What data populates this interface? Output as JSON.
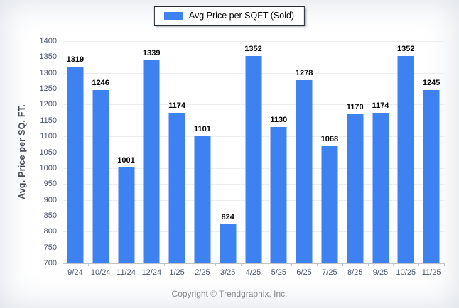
{
  "legend": {
    "label": "Avg Price per SQFT (Sold)"
  },
  "footer": {
    "copyright": "Copyright © Trendgraphix, Inc."
  },
  "colors": {
    "bar": "#3E82F1",
    "grid": "#ededed",
    "axis_line": "#bfc3c7",
    "tick_text": "#4a5468",
    "y_title": "#484d55",
    "value_label": "#000000",
    "legend_border": "#262b33",
    "copyright_text": "#87888a"
  },
  "chart_data": {
    "type": "bar",
    "title": "",
    "categories": [
      "9/24",
      "10/24",
      "11/24",
      "12/24",
      "1/25",
      "2/25",
      "3/25",
      "4/25",
      "5/25",
      "6/25",
      "7/25",
      "8/25",
      "9/25",
      "10/25",
      "11/25"
    ],
    "values": [
      1319,
      1246,
      1001,
      1339,
      1174,
      1101,
      824,
      1352,
      1130,
      1278,
      1068,
      1170,
      1174,
      1352,
      1245
    ],
    "xlabel": "",
    "ylabel": "Avg. Price per SQ. FT.",
    "ylim": [
      700,
      1400
    ],
    "ytick_step": 50,
    "grid": true,
    "legend_position": "top-center",
    "value_labels": true
  }
}
